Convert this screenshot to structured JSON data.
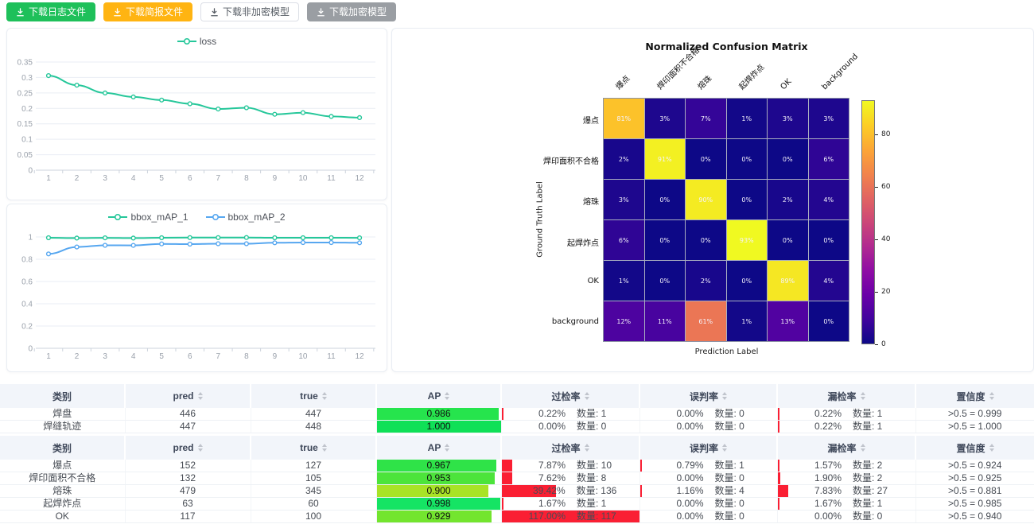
{
  "toolbar": {
    "buttons": [
      {
        "label": "下载日志文件",
        "bg": "#1ec05a",
        "fg": "#ffffff",
        "border": "#1ec05a"
      },
      {
        "label": "下载简报文件",
        "bg": "#ffb412",
        "fg": "#ffffff",
        "border": "#ffb412"
      },
      {
        "label": "下载非加密模型",
        "bg": "#ffffff",
        "fg": "#565c64",
        "border": "#dcdfe6"
      },
      {
        "label": "下载加密模型",
        "bg": "#9a9ea3",
        "fg": "#ffffff",
        "border": "#9a9ea3"
      }
    ]
  },
  "chart_data": [
    {
      "id": "loss",
      "type": "line",
      "legend": [
        "loss"
      ],
      "legend_position": "top",
      "grid": true,
      "x": [
        1,
        2,
        3,
        4,
        5,
        6,
        7,
        8,
        9,
        10,
        11,
        12
      ],
      "series": [
        {
          "name": "loss",
          "color": "#26c79a",
          "values": [
            0.306,
            0.275,
            0.25,
            0.237,
            0.227,
            0.215,
            0.198,
            0.202,
            0.181,
            0.186,
            0.174,
            0.17
          ]
        }
      ],
      "ylim": [
        0,
        0.35
      ],
      "yticks": [
        0,
        0.05,
        0.1,
        0.15,
        0.2,
        0.25,
        0.3,
        0.35
      ]
    },
    {
      "id": "bbox_map",
      "type": "line",
      "legend": [
        "bbox_mAP_1",
        "bbox_mAP_2"
      ],
      "legend_position": "top",
      "grid": true,
      "x": [
        1,
        2,
        3,
        4,
        5,
        6,
        7,
        8,
        9,
        10,
        11,
        12
      ],
      "series": [
        {
          "name": "bbox_mAP_1",
          "color": "#26c79a",
          "values": [
            0.993,
            0.99,
            0.992,
            0.99,
            0.993,
            0.994,
            0.994,
            0.995,
            0.993,
            0.993,
            0.993,
            0.992
          ]
        },
        {
          "name": "bbox_mAP_2",
          "color": "#57a7f0",
          "values": [
            0.848,
            0.91,
            0.925,
            0.924,
            0.938,
            0.936,
            0.939,
            0.939,
            0.948,
            0.95,
            0.95,
            0.948
          ]
        }
      ],
      "ylim": [
        0,
        1
      ],
      "yticks": [
        0,
        0.2,
        0.4,
        0.6,
        0.8,
        1
      ]
    },
    {
      "id": "confusion",
      "type": "heatmap",
      "title": "Normalized Confusion Matrix",
      "xlabel": "Prediction Label",
      "ylabel": "Ground Truth Label",
      "categories": [
        "爆点",
        "焊印面积不合格",
        "熔珠",
        "起焊炸点",
        "OK",
        "background"
      ],
      "matrix_percent": [
        [
          81,
          3,
          7,
          1,
          3,
          3
        ],
        [
          2,
          91,
          0,
          0,
          0,
          6
        ],
        [
          3,
          0,
          90,
          0,
          2,
          4
        ],
        [
          6,
          0,
          0,
          93,
          0,
          0
        ],
        [
          1,
          0,
          2,
          0,
          89,
          4
        ],
        [
          12,
          11,
          61,
          1,
          13,
          0
        ]
      ],
      "vmax": 93,
      "colorbar_ticks": [
        0,
        20,
        40,
        60,
        80
      ],
      "colormap": "plasma",
      "colormap_stops": [
        "#0d0887",
        "#41049d",
        "#6a00a8",
        "#8f0da4",
        "#b12a90",
        "#cc4778",
        "#e16462",
        "#f2844b",
        "#fca636",
        "#fcce25",
        "#f0f921"
      ]
    }
  ],
  "tables": {
    "count_label": "数量:",
    "rate_bar_color": "#fa1f33",
    "headers": [
      "类别",
      "pred",
      "true",
      "AP",
      "过检率",
      "误判率",
      "漏检率",
      "置信度"
    ],
    "sortable": [
      false,
      true,
      true,
      true,
      true,
      true,
      true,
      true
    ],
    "table1": {
      "rows": [
        {
          "cat": "焊盘",
          "pred": "446",
          "true": "447",
          "ap": 0.986,
          "ap_text": "0.986",
          "ap_color": "#26e44d",
          "over": {
            "pct": "0.22%",
            "rate": 0.22,
            "count": "1"
          },
          "mis": {
            "pct": "0.00%",
            "rate": 0,
            "count": "0"
          },
          "miss": {
            "pct": "0.22%",
            "rate": 0.22,
            "count": "1"
          },
          "conf": ">0.5 = 0.999"
        },
        {
          "cat": "焊缝轨迹",
          "pred": "447",
          "true": "448",
          "ap": 1.0,
          "ap_text": "1.000",
          "ap_color": "#10e057",
          "over": {
            "pct": "0.00%",
            "rate": 0,
            "count": "0"
          },
          "mis": {
            "pct": "0.00%",
            "rate": 0,
            "count": "0"
          },
          "miss": {
            "pct": "0.22%",
            "rate": 0.22,
            "count": "1"
          },
          "conf": ">0.5 = 1.000"
        }
      ]
    },
    "table2": {
      "rows": [
        {
          "cat": "爆点",
          "pred": "152",
          "true": "127",
          "ap": 0.967,
          "ap_text": "0.967",
          "ap_color": "#2fe348",
          "over": {
            "pct": "7.87%",
            "rate": 7.87,
            "count": "10"
          },
          "mis": {
            "pct": "0.79%",
            "rate": 0.79,
            "count": "1"
          },
          "miss": {
            "pct": "1.57%",
            "rate": 1.57,
            "count": "2"
          },
          "conf": ">0.5 = 0.924"
        },
        {
          "cat": "焊印面积不合格",
          "pred": "132",
          "true": "105",
          "ap": 0.953,
          "ap_text": "0.953",
          "ap_color": "#4ce43b",
          "over": {
            "pct": "7.62%",
            "rate": 7.62,
            "count": "8"
          },
          "mis": {
            "pct": "0.00%",
            "rate": 0,
            "count": "0"
          },
          "miss": {
            "pct": "1.90%",
            "rate": 1.9,
            "count": "2"
          },
          "conf": ">0.5 = 0.925"
        },
        {
          "cat": "熔珠",
          "pred": "479",
          "true": "345",
          "ap": 0.9,
          "ap_text": "0.900",
          "ap_color": "#a8e326",
          "over": {
            "pct": "39.42%",
            "rate": 39.42,
            "count": "136"
          },
          "mis": {
            "pct": "1.16%",
            "rate": 1.16,
            "count": "4"
          },
          "miss": {
            "pct": "7.83%",
            "rate": 7.83,
            "count": "27"
          },
          "conf": ">0.5 = 0.881"
        },
        {
          "cat": "起焊炸点",
          "pred": "63",
          "true": "60",
          "ap": 0.998,
          "ap_text": "0.998",
          "ap_color": "#15e464",
          "over": {
            "pct": "1.67%",
            "rate": 1.67,
            "count": "1"
          },
          "mis": {
            "pct": "0.00%",
            "rate": 0,
            "count": "0"
          },
          "miss": {
            "pct": "1.67%",
            "rate": 1.67,
            "count": "1"
          },
          "conf": ">0.5 = 0.985"
        },
        {
          "cat": "OK",
          "pred": "117",
          "true": "100",
          "ap": 0.929,
          "ap_text": "0.929",
          "ap_color": "#73e52e",
          "over": {
            "pct": "117.00%",
            "rate": 117,
            "count": "117"
          },
          "mis": {
            "pct": "0.00%",
            "rate": 0,
            "count": "0"
          },
          "miss": {
            "pct": "0.00%",
            "rate": 0,
            "count": "0"
          },
          "conf": ">0.5 = 0.940"
        }
      ]
    }
  }
}
